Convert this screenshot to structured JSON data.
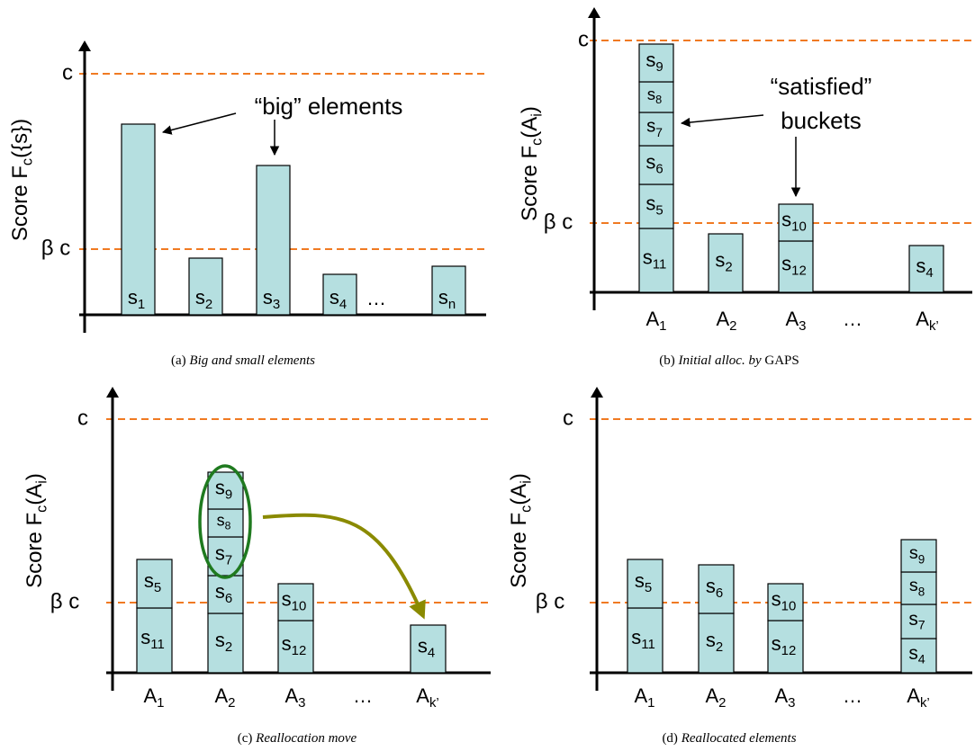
{
  "panels": [
    {
      "y_label": [
        "Score F",
        "c",
        "({s})"
      ],
      "c_label": "c",
      "beta_label": "β c",
      "ellipsis": "…",
      "bars": [
        {
          "blocks": [
            [
              "s",
              "1"
            ]
          ]
        },
        {
          "blocks": [
            [
              "s",
              "2"
            ]
          ]
        },
        {
          "blocks": [
            [
              "s",
              "3"
            ]
          ]
        },
        {
          "blocks": [
            [
              "s",
              "4"
            ]
          ]
        },
        {
          "blocks": [
            [
              "s",
              "n"
            ]
          ]
        }
      ],
      "x_labels": [],
      "annotation": [
        "“big” elements"
      ],
      "caption": {
        "tag": "(a)",
        "text": "Big and small elements"
      }
    },
    {
      "y_label": [
        "Score F",
        "c",
        "(A",
        "i",
        ")"
      ],
      "c_label": "c",
      "beta_label": "β c",
      "ellipsis": "…",
      "bars": [
        {
          "blocks": [
            [
              "s",
              "11"
            ],
            [
              "s",
              "5"
            ],
            [
              "s",
              "6"
            ],
            [
              "s",
              "7"
            ],
            [
              "s",
              "8"
            ],
            [
              "s",
              "9"
            ]
          ]
        },
        {
          "blocks": [
            [
              "s",
              "2"
            ]
          ]
        },
        {
          "blocks": [
            [
              "s",
              "12"
            ],
            [
              "s",
              "10"
            ]
          ]
        },
        {
          "blocks": [
            [
              "s",
              "4"
            ]
          ]
        }
      ],
      "x_labels": [
        [
          "A",
          "1"
        ],
        [
          "A",
          "2"
        ],
        [
          "A",
          "3"
        ],
        [
          "A",
          "k’"
        ]
      ],
      "annotation": [
        "“satisfied”",
        "buckets"
      ],
      "caption": {
        "tag": "(b)",
        "text": "Initial alloc. by",
        "extra": "GAPS"
      }
    },
    {
      "y_label": [
        "Score F",
        "c",
        "(A",
        "i",
        ")"
      ],
      "c_label": "c",
      "beta_label": "β c",
      "ellipsis": "…",
      "bars": [
        {
          "blocks": [
            [
              "s",
              "11"
            ],
            [
              "s",
              "5"
            ]
          ]
        },
        {
          "blocks": [
            [
              "s",
              "2"
            ],
            [
              "s",
              "6"
            ],
            [
              "s",
              "7"
            ],
            [
              "s",
              "8"
            ],
            [
              "s",
              "9"
            ]
          ]
        },
        {
          "blocks": [
            [
              "s",
              "12"
            ],
            [
              "s",
              "10"
            ]
          ]
        },
        {
          "blocks": [
            [
              "s",
              "4"
            ]
          ]
        }
      ],
      "x_labels": [
        [
          "A",
          "1"
        ],
        [
          "A",
          "2"
        ],
        [
          "A",
          "3"
        ],
        [
          "A",
          "k’"
        ]
      ],
      "annotation": [],
      "caption": {
        "tag": "(c)",
        "text": "Reallocation move"
      }
    },
    {
      "y_label": [
        "Score F",
        "c",
        "(A",
        "i",
        ")"
      ],
      "c_label": "c",
      "beta_label": "β c",
      "ellipsis": "…",
      "bars": [
        {
          "blocks": [
            [
              "s",
              "11"
            ],
            [
              "s",
              "5"
            ]
          ]
        },
        {
          "blocks": [
            [
              "s",
              "2"
            ],
            [
              "s",
              "6"
            ]
          ]
        },
        {
          "blocks": [
            [
              "s",
              "12"
            ],
            [
              "s",
              "10"
            ]
          ]
        },
        {
          "blocks": [
            [
              "s",
              "4"
            ],
            [
              "s",
              "7"
            ],
            [
              "s",
              "8"
            ],
            [
              "s",
              "9"
            ]
          ]
        }
      ],
      "x_labels": [
        [
          "A",
          "1"
        ],
        [
          "A",
          "2"
        ],
        [
          "A",
          "3"
        ],
        [
          "A",
          "k’"
        ]
      ],
      "annotation": [],
      "caption": {
        "tag": "(d)",
        "text": "Reallocated elements"
      }
    }
  ]
}
